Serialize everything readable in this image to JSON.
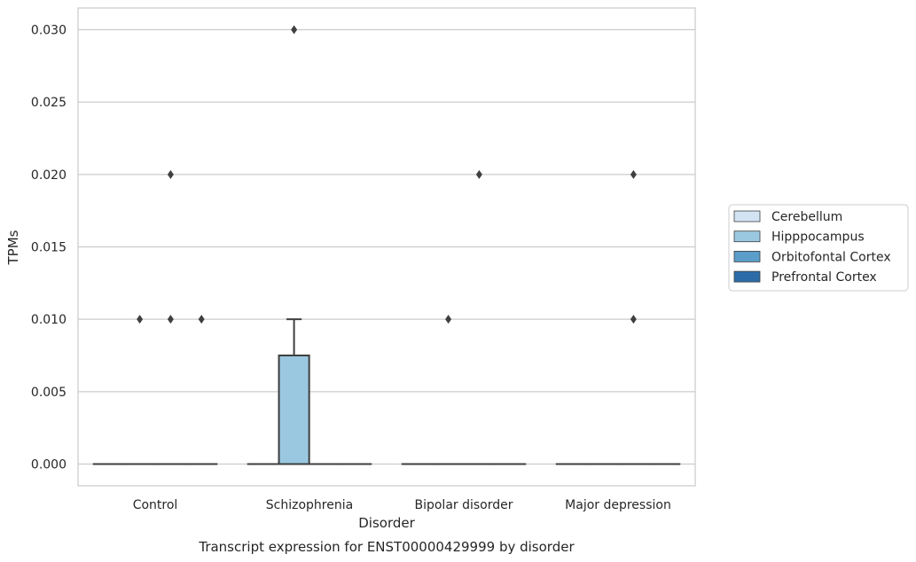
{
  "caption": "Transcript expression for ENST00000429999 by disorder",
  "chart_data": {
    "type": "box",
    "xlabel": "Disorder",
    "ylabel": "TPMs",
    "ylim": [
      -0.0015,
      0.0315
    ],
    "yticks": [
      0.0,
      0.005,
      0.01,
      0.015,
      0.02,
      0.025,
      0.03
    ],
    "ytick_labels": [
      "0.000",
      "0.005",
      "0.010",
      "0.015",
      "0.020",
      "0.025",
      "0.030"
    ],
    "grid": "horizontal",
    "legend_position": "right",
    "categories": [
      "Control",
      "Schizophrenia",
      "Bipolar disorder",
      "Major depression"
    ],
    "series": [
      {
        "name": "Cerebellum",
        "color": "#d2e3f3",
        "boxes": [
          {
            "q1": 0,
            "median": 0,
            "q3": 0,
            "whisker_low": 0,
            "whisker_high": 0,
            "outliers": []
          },
          {
            "q1": 0,
            "median": 0,
            "q3": 0,
            "whisker_low": 0,
            "whisker_high": 0,
            "outliers": []
          },
          {
            "q1": 0,
            "median": 0,
            "q3": 0,
            "whisker_low": 0,
            "whisker_high": 0,
            "outliers": []
          },
          {
            "q1": 0,
            "median": 0,
            "q3": 0,
            "whisker_low": 0,
            "whisker_high": 0,
            "outliers": []
          }
        ]
      },
      {
        "name": "Hipppocampus",
        "color": "#9ac8e0",
        "boxes": [
          {
            "q1": 0,
            "median": 0,
            "q3": 0,
            "whisker_low": 0,
            "whisker_high": 0,
            "outliers": [
              0.01
            ]
          },
          {
            "q1": 0,
            "median": 0,
            "q3": 0.0075,
            "whisker_low": 0,
            "whisker_high": 0.01,
            "outliers": [
              0.03
            ]
          },
          {
            "q1": 0,
            "median": 0,
            "q3": 0,
            "whisker_low": 0,
            "whisker_high": 0,
            "outliers": [
              0.01
            ]
          },
          {
            "q1": 0,
            "median": 0,
            "q3": 0,
            "whisker_low": 0,
            "whisker_high": 0,
            "outliers": []
          }
        ]
      },
      {
        "name": "Orbitofontal Cortex",
        "color": "#5a9ec9",
        "boxes": [
          {
            "q1": 0,
            "median": 0,
            "q3": 0,
            "whisker_low": 0,
            "whisker_high": 0,
            "outliers": [
              0.01,
              0.02
            ]
          },
          {
            "q1": 0,
            "median": 0,
            "q3": 0,
            "whisker_low": 0,
            "whisker_high": 0,
            "outliers": []
          },
          {
            "q1": 0,
            "median": 0,
            "q3": 0,
            "whisker_low": 0,
            "whisker_high": 0,
            "outliers": [
              0.02
            ]
          },
          {
            "q1": 0,
            "median": 0,
            "q3": 0,
            "whisker_low": 0,
            "whisker_high": 0,
            "outliers": [
              0.01,
              0.02
            ]
          }
        ]
      },
      {
        "name": "Prefrontal Cortex",
        "color": "#2b6ca8",
        "boxes": [
          {
            "q1": 0,
            "median": 0,
            "q3": 0,
            "whisker_low": 0,
            "whisker_high": 0,
            "outliers": [
              0.01
            ]
          },
          {
            "q1": 0,
            "median": 0,
            "q3": 0,
            "whisker_low": 0,
            "whisker_high": 0,
            "outliers": []
          },
          {
            "q1": 0,
            "median": 0,
            "q3": 0,
            "whisker_low": 0,
            "whisker_high": 0,
            "outliers": []
          },
          {
            "q1": 0,
            "median": 0,
            "q3": 0,
            "whisker_low": 0,
            "whisker_high": 0,
            "outliers": []
          }
        ]
      }
    ]
  }
}
